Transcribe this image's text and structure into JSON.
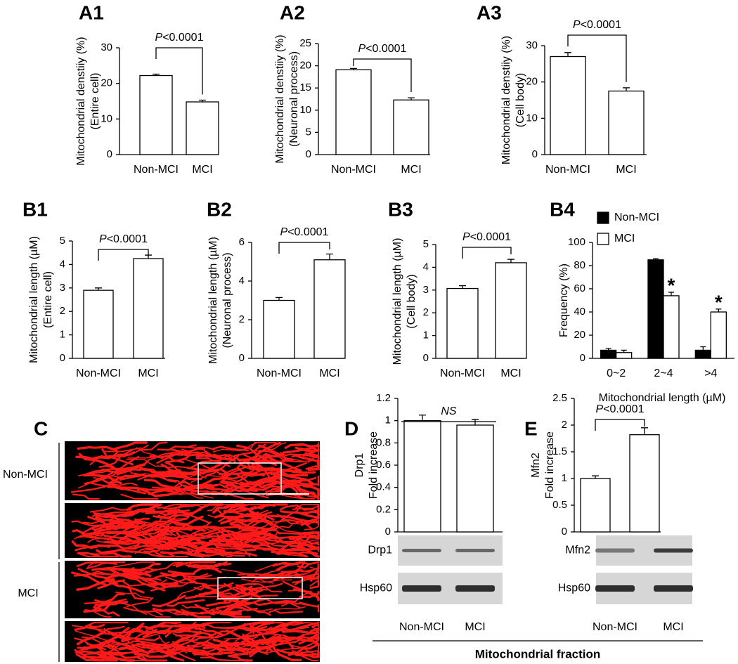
{
  "chart_data": [
    {
      "type": "bar",
      "label": "A1",
      "ylabel": [
        "Mitochondrial denstiiy (%)",
        "(Entire cell)"
      ],
      "categories": [
        "Non-MCI",
        "MCI"
      ],
      "values": [
        22.2,
        14.8
      ],
      "errors": [
        0.4,
        0.5
      ],
      "color": "#ffffff",
      "ylim": [
        0,
        30
      ],
      "yticks": [
        0,
        10,
        20,
        30
      ],
      "annotation": "P<0.0001"
    },
    {
      "type": "bar",
      "label": "A2",
      "ylabel": [
        "Mitochondrial denstiiy (%)",
        "(Neuronal process)"
      ],
      "categories": [
        "Non-MCI",
        "MCI"
      ],
      "values": [
        19.1,
        12.3
      ],
      "errors": [
        0.3,
        0.5
      ],
      "color": "#ffffff",
      "ylim": [
        0,
        25
      ],
      "yticks": [
        0,
        5,
        10,
        15,
        20,
        25
      ],
      "annotation": "P<0.0001"
    },
    {
      "type": "bar",
      "label": "A3",
      "ylabel": [
        "Mitochondrial denstiiy (%)",
        "(Cell body)"
      ],
      "categories": [
        "Non-MCI",
        "MCI"
      ],
      "values": [
        27.0,
        17.5
      ],
      "errors": [
        1.1,
        0.9
      ],
      "color": "#ffffff",
      "ylim": [
        0,
        30
      ],
      "yticks": [
        0,
        10,
        20,
        30
      ],
      "annotation": "P<0.0001"
    },
    {
      "type": "bar",
      "label": "B1",
      "ylabel": [
        "Mitochondrial length (µM)",
        "(Entire cell)"
      ],
      "categories": [
        "Non-MCI",
        "MCI"
      ],
      "values": [
        2.9,
        4.25
      ],
      "errors": [
        0.1,
        0.15
      ],
      "color": "#ffffff",
      "ylim": [
        0,
        5
      ],
      "yticks": [
        0,
        1,
        2,
        3,
        4,
        5
      ],
      "annotation": "P<0.0001"
    },
    {
      "type": "bar",
      "label": "B2",
      "ylabel": [
        "Mitochondrial length (µM)",
        "(Neuronal process)"
      ],
      "categories": [
        "Non-MCI",
        "MCI"
      ],
      "values": [
        3.0,
        5.1
      ],
      "errors": [
        0.15,
        0.3
      ],
      "color": "#ffffff",
      "ylim": [
        0,
        6
      ],
      "yticks": [
        0,
        2,
        4,
        6
      ],
      "annotation": "P<0.0001"
    },
    {
      "type": "bar",
      "label": "B3",
      "ylabel": [
        "Mitochondrial length (µM)",
        "(Cell body)"
      ],
      "categories": [
        "Non-MCI",
        "MCI"
      ],
      "values": [
        3.07,
        4.2
      ],
      "errors": [
        0.12,
        0.15
      ],
      "color": "#ffffff",
      "ylim": [
        0,
        5
      ],
      "yticks": [
        0,
        1,
        2,
        3,
        4,
        5
      ],
      "annotation": "P<0.0001"
    },
    {
      "type": "grouped-bar",
      "label": "B4",
      "ylabel": [
        "Frequency (%)"
      ],
      "xlabel": "Mitochondrial length (µM)",
      "categories": [
        "0~2",
        "2~4",
        ">4"
      ],
      "series": [
        {
          "name": "Non-MCI",
          "color": "#000000",
          "values": [
            7,
            85,
            7
          ],
          "errors": [
            1.5,
            1,
            3
          ]
        },
        {
          "name": "MCI",
          "color": "#ffffff",
          "values": [
            5,
            54,
            40
          ],
          "errors": [
            2,
            3,
            2.5
          ],
          "annotations": [
            null,
            "*",
            "*"
          ]
        }
      ],
      "ylim": [
        0,
        100
      ],
      "yticks": [
        0,
        20,
        40,
        60,
        80,
        100
      ],
      "legend": "top-left"
    },
    {
      "type": "bar",
      "label": "D",
      "ylabel": [
        "Drp1",
        "Fold increase"
      ],
      "categories": [
        "Non-MCI",
        "MCI"
      ],
      "values": [
        1.0,
        0.96
      ],
      "errors": [
        0.05,
        0.05
      ],
      "color": "#ffffff",
      "ylim": [
        0,
        1.2
      ],
      "yticks": [
        0,
        0.2,
        0.4,
        0.6,
        0.8,
        1,
        1.2
      ],
      "annotation": "NS",
      "blot_labels": [
        "Drp1",
        "Hsp60"
      ]
    },
    {
      "type": "bar",
      "label": "E",
      "ylabel": [
        "Mfn2",
        "Fold increase"
      ],
      "categories": [
        "Non-MCI",
        "MCI"
      ],
      "values": [
        1.0,
        1.82
      ],
      "errors": [
        0.05,
        0.13
      ],
      "color": "#ffffff",
      "ylim": [
        0,
        2.5
      ],
      "yticks": [
        0,
        0.5,
        1,
        1.5,
        2,
        2.5
      ],
      "annotation": "P<0.0001",
      "blot_labels": [
        "Mfn2",
        "Hsp60"
      ]
    }
  ],
  "panel_c": {
    "label": "C",
    "groups": [
      "Non-MCI",
      "MCI"
    ]
  },
  "footer": "Mitochondrial fraction"
}
